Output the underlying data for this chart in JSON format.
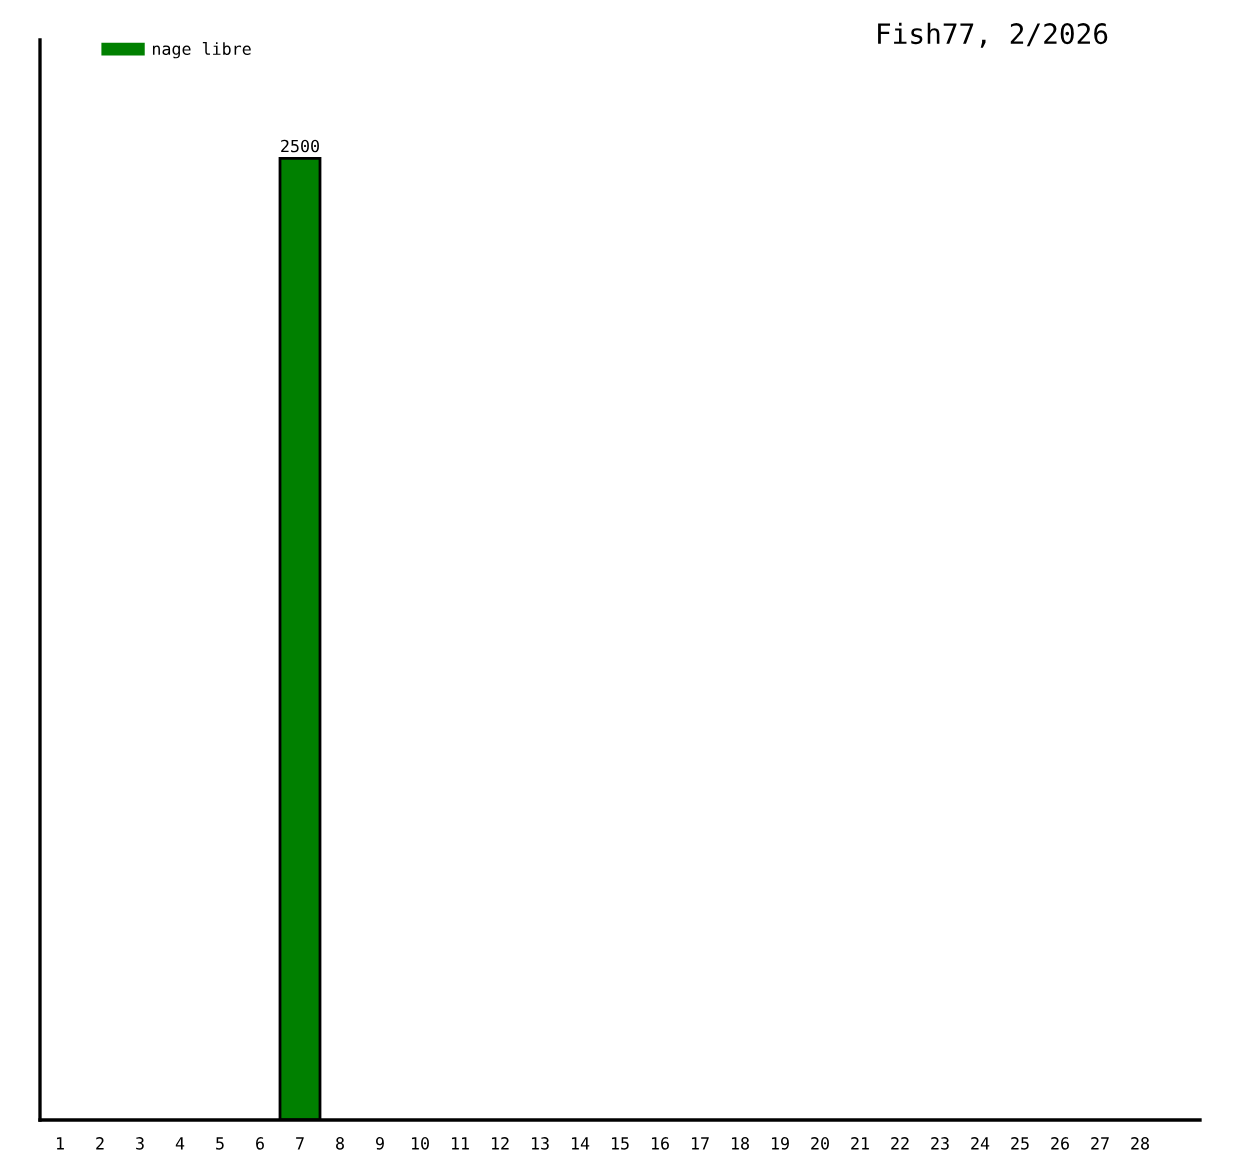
{
  "chart_data": {
    "type": "bar",
    "title": "Fish77, 2/2026",
    "categories": [
      "1",
      "2",
      "3",
      "4",
      "5",
      "6",
      "7",
      "8",
      "9",
      "10",
      "11",
      "12",
      "13",
      "14",
      "15",
      "16",
      "17",
      "18",
      "19",
      "20",
      "21",
      "22",
      "23",
      "24",
      "25",
      "26",
      "27",
      "28"
    ],
    "series": [
      {
        "name": "nage libre",
        "color": "#008000",
        "values": [
          null,
          null,
          null,
          null,
          null,
          null,
          2500,
          null,
          null,
          null,
          null,
          null,
          null,
          null,
          null,
          null,
          null,
          null,
          null,
          null,
          null,
          null,
          null,
          null,
          null,
          null,
          null,
          null
        ]
      }
    ],
    "data_labels": true,
    "legend": "top left",
    "tick_labels": "x",
    "grid": false
  }
}
